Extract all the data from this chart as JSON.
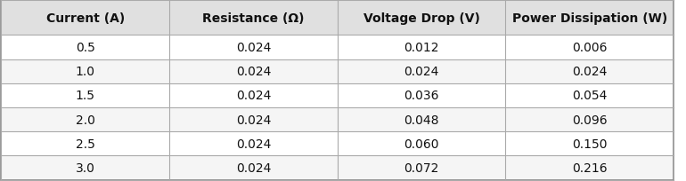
{
  "headers": [
    "Current (A)",
    "Resistance (Ω)",
    "Voltage Drop (V)",
    "Power Dissipation (W)"
  ],
  "rows": [
    [
      "0.5",
      "0.024",
      "0.012",
      "0.006"
    ],
    [
      "1.0",
      "0.024",
      "0.024",
      "0.024"
    ],
    [
      "1.5",
      "0.024",
      "0.036",
      "0.054"
    ],
    [
      "2.0",
      "0.024",
      "0.048",
      "0.096"
    ],
    [
      "2.5",
      "0.024",
      "0.060",
      "0.150"
    ],
    [
      "3.0",
      "0.024",
      "0.072",
      "0.216"
    ]
  ],
  "header_bg": "#e0e0e0",
  "row_bg_odd": "#ffffff",
  "row_bg_even": "#f5f5f5",
  "border_color": "#aaaaaa",
  "header_font_size": 10.0,
  "cell_font_size": 10.0,
  "header_font_weight": "bold",
  "outer_border_color": "#888888",
  "fig_bg": "#ffffff"
}
